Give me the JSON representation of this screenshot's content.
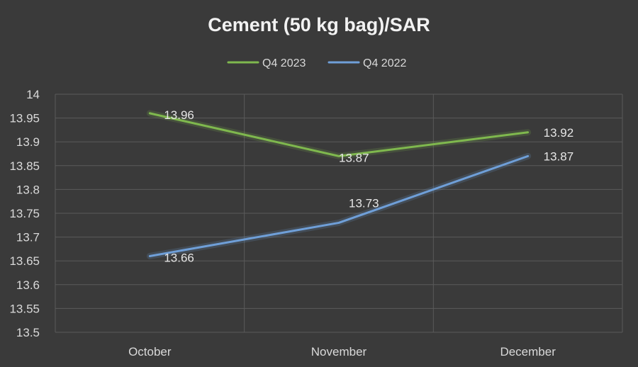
{
  "colors": {
    "background": "#3a3a3a",
    "series_1": "#7fb84e",
    "series_2": "#6f9fd8"
  },
  "chart_data": {
    "type": "line",
    "title": "Cement (50 kg bag)/SAR",
    "xlabel": "",
    "ylabel": "",
    "categories": [
      "October",
      "November",
      "December"
    ],
    "series": [
      {
        "name": "Q4 2023",
        "values": [
          13.96,
          13.87,
          13.92
        ]
      },
      {
        "name": "Q4 2022",
        "values": [
          13.66,
          13.73,
          13.87
        ]
      }
    ],
    "data_labels": [
      [
        "13.96",
        "13.87",
        "13.92"
      ],
      [
        "13.66",
        "13.73",
        "13.87"
      ]
    ],
    "ylim": [
      13.5,
      14
    ],
    "yticks": [
      "13.5",
      "13.55",
      "13.6",
      "13.65",
      "13.7",
      "13.75",
      "13.8",
      "13.85",
      "13.9",
      "13.95",
      "14"
    ],
    "grid": true,
    "legend_position": "top"
  }
}
